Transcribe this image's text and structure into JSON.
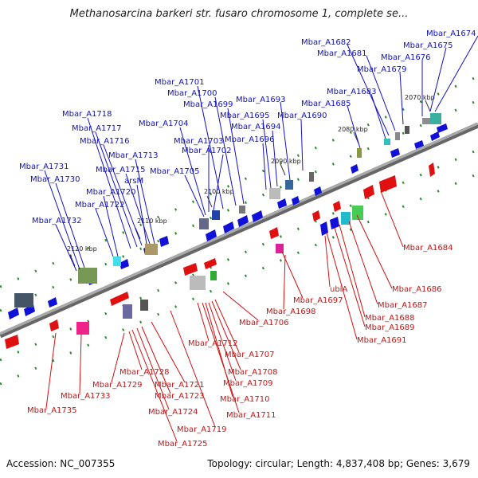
{
  "title": "Methanosarcina barkeri str. fusaro chromosome 1, complete se...",
  "footer": {
    "accession": "Accession: NC_007355",
    "topology": "Topology: circular; Length: 4,837,408 bp; Genes: 3,679"
  },
  "colors": {
    "forward": "#1010d8",
    "reverse": "#e01010",
    "backbone": "#888888",
    "tick": "#118811"
  },
  "ruler": [
    "2070 kbp",
    "2080 kbp",
    "2090 kbp",
    "2100 kbp",
    "2110 kbp",
    "2120 kbp"
  ],
  "forward_labels": [
    "Mbar_A1674",
    "Mbar_A1675",
    "Mbar_A1676",
    "Mbar_A1679",
    "Mbar_A1681",
    "Mbar_A1682",
    "Mbar_A1683",
    "Mbar_A1685",
    "Mbar_A1690",
    "Mbar_A1693",
    "Mbar_A1694",
    "Mbar_A1695",
    "Mbar_A1696",
    "Mbar_A1699",
    "Mbar_A1700",
    "Mbar_A1701",
    "Mbar_A1702",
    "Mbar_A1703",
    "Mbar_A1704",
    "Mbar_A1705",
    "Mbar_A1713",
    "Mbar_A1715",
    "arsM",
    "Mbar_A1716",
    "Mbar_A1717",
    "Mbar_A1718",
    "Mbar_A1720",
    "Mbar_A1722",
    "Mbar_A1730",
    "Mbar_A1731",
    "Mbar_A1732"
  ],
  "reverse_labels": [
    "Mbar_A1684",
    "Mbar_A1686",
    "Mbar_A1687",
    "Mbar_A1688",
    "Mbar_A1689",
    "Mbar_A1691",
    "ubiA",
    "Mbar_A1697",
    "Mbar_A1698",
    "Mbar_A1706",
    "Mbar_A1707",
    "Mbar_A1708",
    "Mbar_A1709",
    "Mbar_A1710",
    "Mbar_A1711",
    "Mbar_A1712",
    "Mbar_A1719",
    "Mbar_A1721",
    "Mbar_A1723",
    "Mbar_A1724",
    "Mbar_A1725",
    "Mbar_A1728",
    "Mbar_A1729",
    "Mbar_A1733",
    "Mbar_A1735"
  ]
}
